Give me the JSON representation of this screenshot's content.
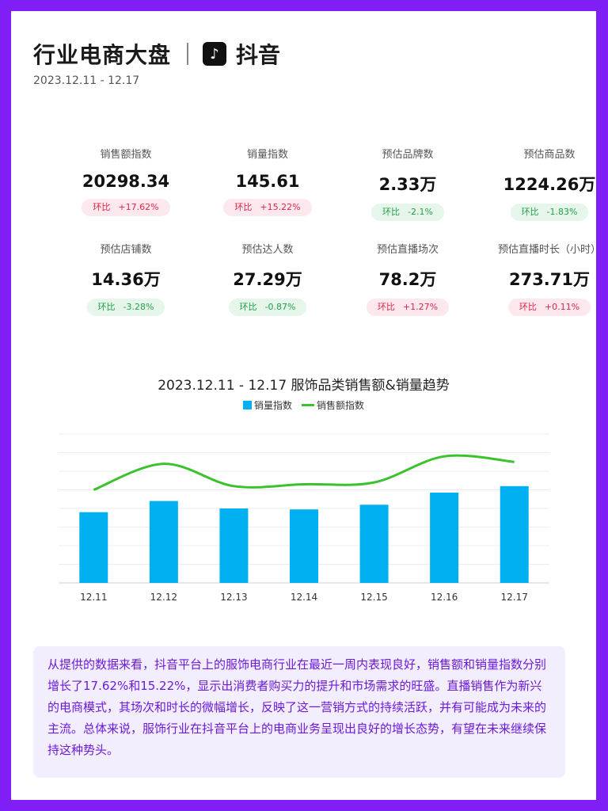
{
  "header": {
    "title": "行业电商大盘",
    "logo_glyph": "♪",
    "platform": "抖音",
    "date_range": "2023.12.11 - 12.17"
  },
  "metrics": [
    {
      "label": "销售额指数",
      "value": "20298.34",
      "badge_label": "环比",
      "badge_value": "+17.62%",
      "trend": "up"
    },
    {
      "label": "销量指数",
      "value": "145.61",
      "badge_label": "环比",
      "badge_value": "+15.22%",
      "trend": "up"
    },
    {
      "label": "预估品牌数",
      "value": "2.33万",
      "badge_label": "环比",
      "badge_value": "-2.1%",
      "trend": "down"
    },
    {
      "label": "预估商品数",
      "value": "1224.26万",
      "badge_label": "环比",
      "badge_value": "-1.83%",
      "trend": "down"
    },
    {
      "label": "预估店铺数",
      "value": "14.36万",
      "badge_label": "环比",
      "badge_value": "-3.28%",
      "trend": "down"
    },
    {
      "label": "预估达人数",
      "value": "27.29万",
      "badge_label": "环比",
      "badge_value": "-0.87%",
      "trend": "down"
    },
    {
      "label": "预估直播场次",
      "value": "78.2万",
      "badge_label": "环比",
      "badge_value": "+1.27%",
      "trend": "up"
    },
    {
      "label": "预估直播时长（小时）",
      "value": "273.71万",
      "badge_label": "环比",
      "badge_value": "+0.11%",
      "trend": "up"
    }
  ],
  "colors": {
    "up": "#e0244b",
    "down": "#22a04b",
    "bar": "#00b0f0",
    "line": "#3cc22c",
    "frame": "#7f1ff5"
  },
  "chart_data": {
    "type": "bar",
    "title": "2023.12.11 - 12.17 服饰品类销售额&销量趋势",
    "categories": [
      "12.11",
      "12.12",
      "12.13",
      "12.14",
      "12.15",
      "12.16",
      "12.17"
    ],
    "series": [
      {
        "name": "销量指数",
        "type": "bar",
        "values": [
          38,
          44,
          40,
          39.5,
          42,
          48.5,
          52
        ]
      },
      {
        "name": "销售额指数",
        "type": "line",
        "values": [
          50,
          64,
          52,
          53,
          54,
          68,
          65
        ]
      }
    ],
    "ylim": [
      0,
      80
    ],
    "grid": true,
    "legend": "top-center"
  },
  "summary": "从提供的数据来看，抖音平台上的服饰电商行业在最近一周内表现良好，销售额和销量指数分别增长了17.62%和15.22%，显示出消费者购买力的提升和市场需求的旺盛。直播销售作为新兴的电商模式，其场次和时长的微幅增长，反映了这一营销方式的持续活跃，并有可能成为未来的主流。总体来说，服饰行业在抖音平台上的电商业务呈现出良好的增长态势，有望在未来继续保持这种势头。"
}
